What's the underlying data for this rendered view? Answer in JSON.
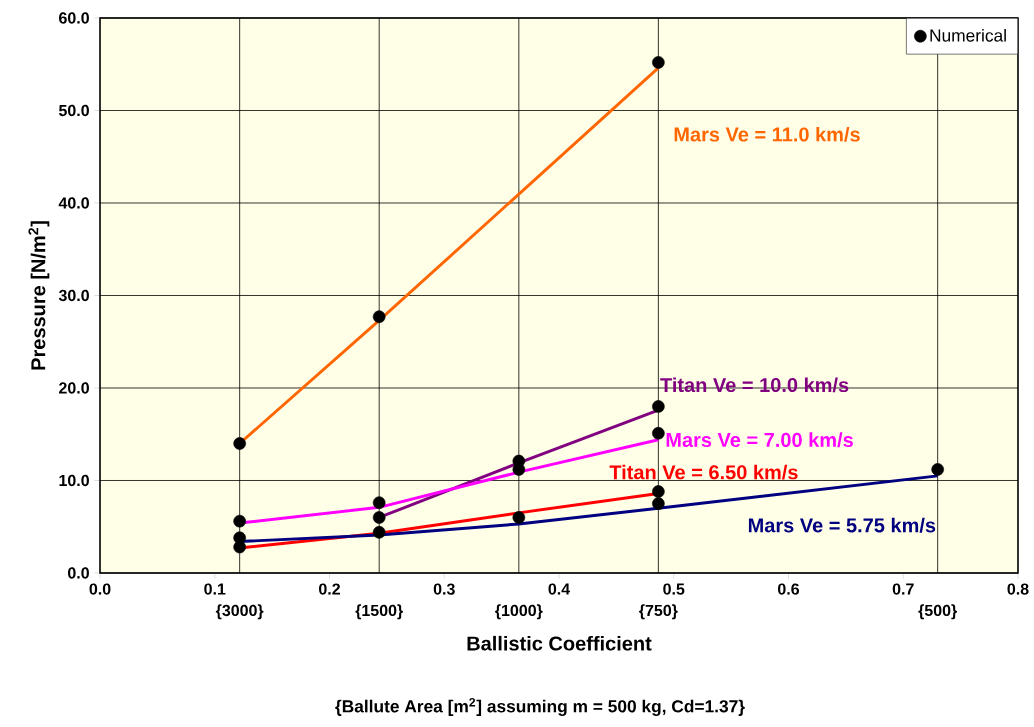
{
  "chart_data": {
    "type": "line",
    "xlabel": "Ballistic Coefficient",
    "ylabel": "Pressure [N/m$^{2}$]",
    "annotations": [
      "{Ballute Area [m$^{2}$] assuming m = 500 kg, Cd=1.37}",
      {
        "text": "{3000}",
        "x": 0.1217,
        "y": 0
      },
      {
        "text": "{1500}",
        "x": 0.2433,
        "y": 0
      },
      {
        "text": "{1000}",
        "x": 0.365,
        "y": 0
      },
      {
        "text": "{750}",
        "x": 0.4866,
        "y": 0
      },
      {
        "text": "{500}",
        "x": 0.73,
        "y": 0
      }
    ],
    "xlim": [
      0,
      0.8
    ],
    "ylim": [
      0,
      60
    ],
    "xticks": [
      {
        "value": 0,
        "label": "0.0"
      },
      {
        "value": 0.1,
        "label": "0.1"
      },
      {
        "value": 0.2,
        "label": "0.2"
      },
      {
        "value": 0.3,
        "label": "0.3"
      },
      {
        "value": 0.4,
        "label": "0.4"
      },
      {
        "value": 0.5,
        "label": "0.5"
      },
      {
        "value": 0.6,
        "label": "0.6"
      },
      {
        "value": 0.7,
        "label": "0.7"
      },
      {
        "value": 0.8,
        "label": "0.8"
      }
    ],
    "ref_lines": [
      {
        "axis": "x",
        "value": 0.1217,
        "color": "#000000"
      },
      {
        "axis": "x",
        "value": 0.2433,
        "color": "#000000"
      },
      {
        "axis": "x",
        "value": 0.365,
        "color": "#000000"
      },
      {
        "axis": "x",
        "value": 0.4866,
        "color": "#000000"
      },
      {
        "axis": "x",
        "value": 0.73,
        "color": "#000000"
      }
    ],
    "yticks": [
      {
        "value": 0,
        "label": "0.0"
      },
      {
        "value": 10,
        "label": "10.0"
      },
      {
        "value": 20,
        "label": "20.0"
      },
      {
        "value": 30,
        "label": "30.0"
      },
      {
        "value": 40,
        "label": "40.0"
      },
      {
        "value": 50,
        "label": "50.0"
      },
      {
        "value": 60,
        "label": "60.0"
      }
    ],
    "grid": "y",
    "legend": "top right",
    "series": [
      {
        "name": "Mars Ve = 11.0 km/s",
        "color": "#ff6600",
        "x": [
          0.1217,
          0.2433,
          0.4866
        ],
        "values": [
          14.0,
          27.3,
          54.6
        ]
      },
      {
        "name": "Titan Ve = 10.0 km/s",
        "color": "#800080",
        "x": [
          0.2433,
          0.365,
          0.4866
        ],
        "values": [
          6.0,
          11.9,
          17.6
        ]
      },
      {
        "name": "Mars Ve = 7.00 km/s",
        "color": "#ff00ff",
        "x": [
          0.1217,
          0.2433,
          0.365,
          0.4866
        ],
        "values": [
          5.4,
          7.1,
          10.9,
          14.4
        ]
      },
      {
        "name": "Titan Ve = 6.50 km/s",
        "color": "#ff0000",
        "x": [
          0.1217,
          0.2433,
          0.365,
          0.4866
        ],
        "values": [
          2.7,
          4.3,
          6.5,
          8.6
        ]
      },
      {
        "name": "Mars Ve = 5.75 km/s",
        "color": "#000080",
        "x": [
          0.1217,
          0.2433,
          0.365,
          0.4866,
          0.73
        ],
        "values": [
          3.4,
          4.1,
          5.3,
          7.0,
          10.5
        ]
      },
      {
        "name": "Numerical",
        "type": "scatter",
        "color": "#000000",
        "x": [
          0.1217,
          0.1217,
          0.1217,
          0.1217,
          0.2433,
          0.2433,
          0.2433,
          0.2433,
          0.365,
          0.365,
          0.365,
          0.4866,
          0.4866,
          0.4866,
          0.4866,
          0.4866,
          0.73
        ],
        "values": [
          14.0,
          5.6,
          3.8,
          2.8,
          27.7,
          7.6,
          6.0,
          4.4,
          12.1,
          11.2,
          6.0,
          55.2,
          18.0,
          15.1,
          8.8,
          7.5,
          11.2
        ]
      }
    ]
  }
}
